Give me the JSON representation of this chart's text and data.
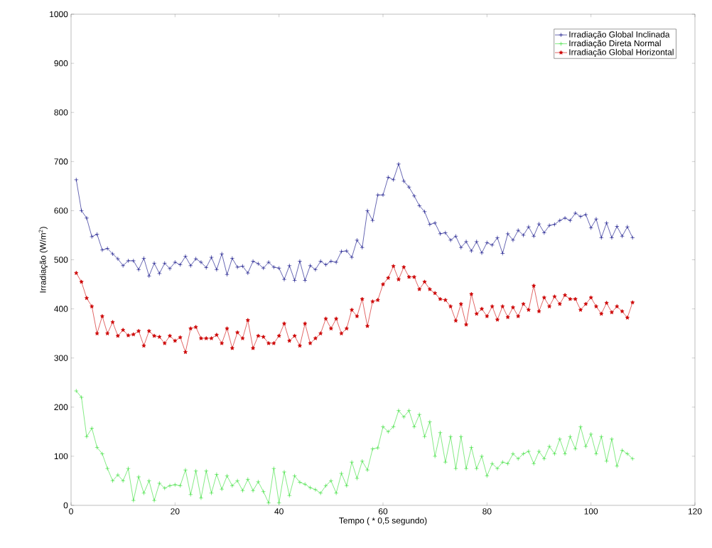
{
  "chart_data": {
    "type": "line",
    "xlabel": "Tempo ( * 0,5 segundo)",
    "ylabel": "Irradiação (W/m$^{2}$)",
    "x": [
      1,
      2,
      3,
      4,
      5,
      6,
      7,
      8,
      9,
      10,
      11,
      12,
      13,
      14,
      15,
      16,
      17,
      18,
      19,
      20,
      21,
      22,
      23,
      24,
      25,
      26,
      27,
      28,
      29,
      30,
      31,
      32,
      33,
      34,
      35,
      36,
      37,
      38,
      39,
      40,
      41,
      42,
      43,
      44,
      45,
      46,
      47,
      48,
      49,
      50,
      51,
      52,
      53,
      54,
      55,
      56,
      57,
      58,
      59,
      60,
      61,
      62,
      63,
      64,
      65,
      66,
      67,
      68,
      69,
      70,
      71,
      72,
      73,
      74,
      75,
      76,
      77,
      78,
      79,
      80,
      81,
      82,
      83,
      84,
      85,
      86,
      87,
      88,
      89,
      90,
      91,
      92,
      93,
      94,
      95,
      96,
      97,
      98,
      99,
      100,
      101,
      102,
      103,
      104,
      105,
      106,
      107,
      108
    ],
    "xlim": [
      0,
      120
    ],
    "ylim": [
      0,
      1000
    ],
    "xticks": [
      0,
      20,
      40,
      60,
      80,
      100,
      120
    ],
    "yticks": [
      0,
      100,
      200,
      300,
      400,
      500,
      600,
      700,
      800,
      900,
      1000
    ],
    "legend": "top right",
    "line_style": "solid",
    "series": [
      {
        "name": "Irradiação Global Inclinada",
        "color": "#000080",
        "marker": "cross",
        "values": [
          663,
          600,
          585,
          547,
          552,
          520,
          523,
          512,
          502,
          488,
          498,
          498,
          480,
          503,
          467,
          493,
          472,
          493,
          482,
          495,
          490,
          507,
          488,
          502,
          495,
          484,
          505,
          480,
          512,
          470,
          503,
          485,
          487,
          473,
          497,
          492,
          483,
          495,
          485,
          483,
          460,
          488,
          458,
          497,
          458,
          488,
          480,
          497,
          490,
          497,
          495,
          517,
          518,
          505,
          540,
          525,
          600,
          580,
          632,
          632,
          668,
          663,
          695,
          660,
          648,
          630,
          610,
          598,
          572,
          575,
          553,
          555,
          540,
          548,
          525,
          537,
          518,
          537,
          514,
          535,
          530,
          545,
          513,
          553,
          540,
          560,
          550,
          567,
          548,
          573,
          555,
          570,
          572,
          580,
          585,
          580,
          595,
          588,
          592,
          565,
          583,
          545,
          575,
          545,
          568,
          548,
          567,
          545
        ]
      },
      {
        "name": "Irradiação Direta Normal",
        "color": "#33dd33",
        "marker": "cross",
        "values": [
          233,
          220,
          140,
          157,
          118,
          105,
          75,
          50,
          62,
          50,
          75,
          10,
          58,
          25,
          50,
          10,
          45,
          35,
          40,
          42,
          40,
          72,
          22,
          70,
          15,
          70,
          25,
          63,
          33,
          60,
          40,
          50,
          30,
          53,
          30,
          48,
          28,
          5,
          75,
          5,
          68,
          20,
          60,
          47,
          43,
          36,
          32,
          25,
          40,
          50,
          25,
          65,
          40,
          88,
          55,
          90,
          72,
          115,
          117,
          160,
          150,
          160,
          193,
          180,
          193,
          160,
          185,
          140,
          170,
          100,
          148,
          88,
          140,
          75,
          140,
          75,
          118,
          75,
          100,
          60,
          85,
          75,
          88,
          85,
          105,
          95,
          105,
          110,
          85,
          110,
          95,
          120,
          105,
          135,
          105,
          140,
          115,
          160,
          120,
          145,
          105,
          140,
          90,
          135,
          80,
          112,
          105,
          95
        ]
      },
      {
        "name": "Irradiação Global Horizontal",
        "color": "#cc0000",
        "marker": "star",
        "values": [
          473,
          455,
          422,
          405,
          350,
          385,
          350,
          373,
          345,
          357,
          346,
          348,
          355,
          325,
          355,
          345,
          343,
          330,
          345,
          335,
          342,
          312,
          360,
          363,
          340,
          340,
          340,
          347,
          330,
          360,
          320,
          352,
          340,
          377,
          320,
          345,
          343,
          330,
          330,
          345,
          370,
          335,
          345,
          325,
          370,
          330,
          340,
          350,
          380,
          360,
          380,
          350,
          360,
          398,
          385,
          420,
          365,
          415,
          418,
          450,
          463,
          487,
          460,
          485,
          465,
          465,
          440,
          455,
          440,
          432,
          420,
          418,
          405,
          376,
          410,
          368,
          430,
          390,
          400,
          385,
          405,
          378,
          405,
          383,
          403,
          385,
          410,
          398,
          447,
          395,
          423,
          405,
          425,
          410,
          428,
          420,
          420,
          398,
          410,
          423,
          405,
          390,
          412,
          393,
          405,
          395,
          382,
          413
        ]
      }
    ]
  }
}
